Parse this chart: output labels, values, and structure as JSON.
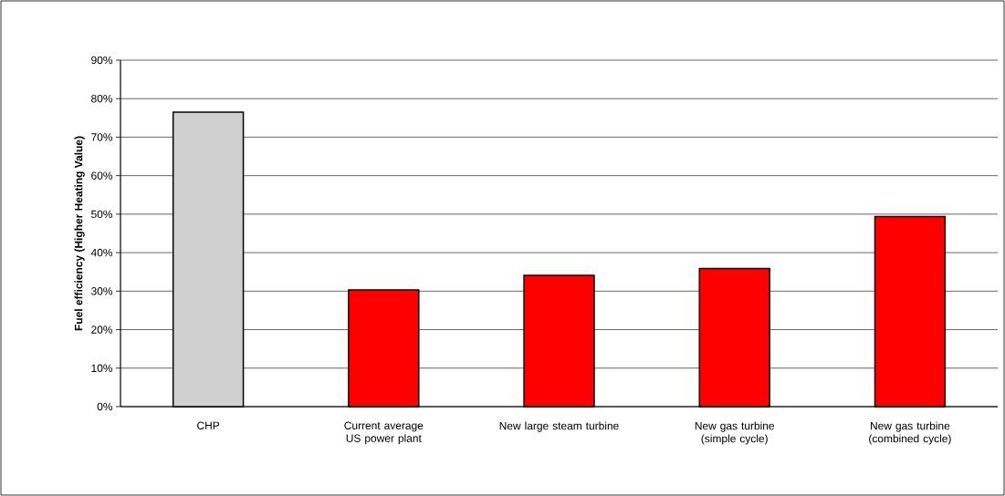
{
  "chart_data": {
    "type": "bar",
    "ylabel": "Fuel efficiency (Higher Heating Value)",
    "categories": [
      "CHP",
      "Current average US power plant",
      "New large steam turbine",
      "New gas turbine (simple cycle)",
      "New gas turbine (combined cycle)"
    ],
    "values": [
      76.5,
      30.3,
      34.1,
      35.9,
      49.4
    ],
    "colors": [
      "#d0d0d0",
      "#ff0000",
      "#ff0000",
      "#ff0000",
      "#ff0000"
    ],
    "ylim": [
      0,
      90
    ],
    "yticks": [
      {
        "value": 0,
        "label": "0%"
      },
      {
        "value": 10,
        "label": "10%"
      },
      {
        "value": 20,
        "label": "20%"
      },
      {
        "value": 30,
        "label": "30%"
      },
      {
        "value": 40,
        "label": "40%"
      },
      {
        "value": 50,
        "label": "50%"
      },
      {
        "value": 60,
        "label": "60%"
      },
      {
        "value": 70,
        "label": "70%"
      },
      {
        "value": 80,
        "label": "80%"
      },
      {
        "value": 90,
        "label": "90%"
      }
    ],
    "grid": "y"
  }
}
